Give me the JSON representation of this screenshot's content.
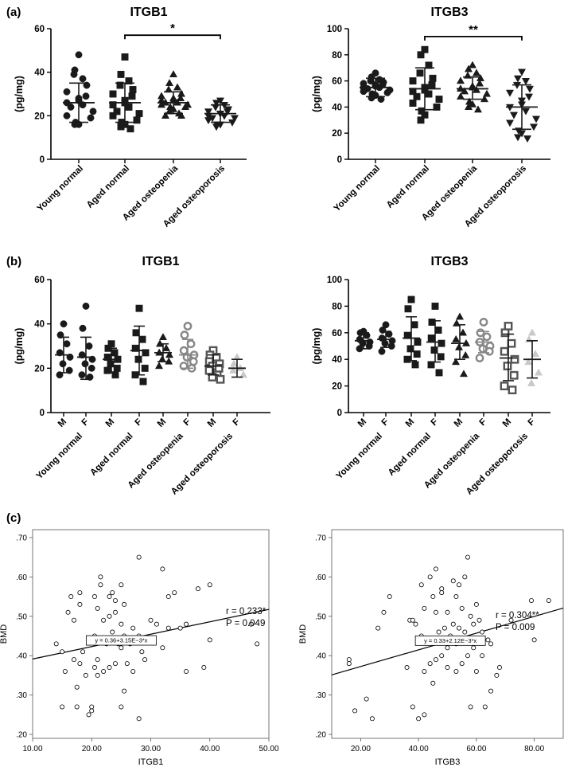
{
  "figure": {
    "panel_labels": [
      "(a)",
      "(b)",
      "(c)"
    ],
    "cat_labels": [
      "Young normal",
      "Aged normal",
      "Aged osteopenia",
      "Aged osteoporosis"
    ],
    "sex_labels": [
      "M",
      "F"
    ],
    "colors": {
      "black": "#1a1a1a",
      "group3_gray": "#888888",
      "group4_gray": "#c9c9c9"
    },
    "group_styles": [
      {
        "marker": "circle",
        "fill": "filled",
        "shade": "black"
      },
      {
        "marker": "square",
        "fill": "filled",
        "shade": "black"
      },
      {
        "marker": "triangle-up",
        "fill": "filled",
        "shade": "black"
      },
      {
        "marker": "triangle-down",
        "fill": "filled",
        "shade": "black"
      }
    ]
  },
  "chart_data": [
    {
      "id": "a1",
      "panel": "(a)",
      "type": "scatter",
      "title": "ITGB1",
      "ylabel": "(pg/mg)",
      "ylim": [
        0,
        60
      ],
      "yticks": [
        "0",
        "20",
        "40",
        "60"
      ],
      "categories": [
        "Young normal",
        "Aged normal",
        "Aged osteopenia",
        "Aged osteoporosis"
      ],
      "groups": [
        {
          "mean": 26,
          "sd_low": 17,
          "sd_high": 35,
          "points": [
            48,
            41,
            37,
            39,
            34,
            31,
            29,
            28,
            27,
            26,
            25,
            24,
            22,
            20,
            19,
            17,
            16,
            16
          ]
        },
        {
          "mean": 26,
          "sd_low": 17,
          "sd_high": 35,
          "points": [
            47,
            39,
            36,
            34,
            32,
            30,
            29,
            27,
            26,
            25,
            24,
            22,
            21,
            20,
            18,
            17,
            16,
            15,
            14
          ]
        },
        {
          "mean": 26,
          "sd_low": 21,
          "sd_high": 31,
          "points": [
            39,
            35,
            33,
            32,
            30,
            29,
            28,
            28,
            27,
            27,
            26,
            26,
            25,
            25,
            24,
            24,
            23,
            22,
            21,
            20,
            20
          ]
        },
        {
          "mean": 21,
          "sd_low": 17,
          "sd_high": 25,
          "points": [
            27,
            26,
            25,
            24,
            23,
            22,
            22,
            21,
            21,
            20,
            20,
            19,
            19,
            18,
            17,
            16,
            16,
            15
          ]
        }
      ],
      "annotations": [
        {
          "from": "Aged normal",
          "to": "Aged osteoporosis",
          "label": "*",
          "y": 57
        }
      ]
    },
    {
      "id": "a2",
      "panel": "(a)",
      "type": "scatter",
      "title": "ITGB3",
      "ylabel": "(pg/mg)",
      "ylim": [
        0,
        100
      ],
      "yticks": [
        "0",
        "20",
        "40",
        "60",
        "80",
        "100"
      ],
      "categories": [
        "Young normal",
        "Aged normal",
        "Aged osteopenia",
        "Aged osteoporosis"
      ],
      "groups": [
        {
          "mean": 55,
          "sd_low": 48,
          "sd_high": 62,
          "points": [
            66,
            63,
            61,
            60,
            59,
            58,
            57,
            57,
            56,
            55,
            55,
            54,
            53,
            52,
            51,
            50,
            49,
            47,
            46
          ]
        },
        {
          "mean": 54,
          "sd_low": 38,
          "sd_high": 70,
          "points": [
            84,
            80,
            72,
            66,
            62,
            60,
            57,
            55,
            53,
            52,
            50,
            48,
            46,
            43,
            40,
            37,
            34,
            30
          ]
        },
        {
          "mean": 54,
          "sd_low": 46,
          "sd_high": 63,
          "points": [
            72,
            69,
            66,
            64,
            62,
            60,
            58,
            56,
            55,
            54,
            53,
            52,
            50,
            48,
            46,
            44,
            42,
            40,
            38
          ]
        },
        {
          "mean": 40,
          "sd_low": 23,
          "sd_high": 57,
          "points": [
            67,
            62,
            60,
            57,
            54,
            51,
            48,
            45,
            42,
            40,
            37,
            34,
            31,
            28,
            25,
            22,
            20,
            17,
            16
          ]
        }
      ],
      "annotations": [
        {
          "from": "Aged normal",
          "to": "Aged osteoporosis",
          "label": "**",
          "y": 94
        }
      ]
    },
    {
      "id": "b1",
      "panel": "(b)",
      "type": "scatter",
      "title": "ITGB1",
      "ylabel": "(pg/mg)",
      "ylim": [
        0,
        60
      ],
      "yticks": [
        "0",
        "20",
        "40",
        "60"
      ],
      "categories": [
        "Young normal",
        "Aged normal",
        "Aged osteopenia",
        "Aged osteoporosis"
      ],
      "groups": [
        {
          "sex": "M",
          "mean": 26,
          "sd_low": 18,
          "sd_high": 34,
          "points": [
            40,
            35,
            31,
            27,
            25,
            22,
            19,
            17
          ]
        },
        {
          "sex": "F",
          "mean": 25,
          "sd_low": 15,
          "sd_high": 34,
          "points": [
            48,
            38,
            30,
            26,
            24,
            22,
            20,
            17,
            16
          ]
        },
        {
          "sex": "M",
          "mean": 24,
          "sd_low": 18,
          "sd_high": 29,
          "points": [
            31,
            29,
            27,
            25,
            24,
            22,
            20,
            19,
            17
          ]
        },
        {
          "sex": "F",
          "mean": 28,
          "sd_low": 17,
          "sd_high": 39,
          "points": [
            47,
            36,
            33,
            29,
            27,
            24,
            20,
            17,
            14
          ]
        },
        {
          "sex": "M",
          "mean": 27,
          "sd_low": 23,
          "sd_high": 31,
          "points": [
            34,
            31,
            29,
            27,
            26,
            24,
            23,
            21
          ]
        },
        {
          "sex": "F",
          "mean": 26,
          "sd_low": 20,
          "sd_high": 33,
          "points": [
            39,
            35,
            31,
            28,
            26,
            25,
            23,
            21,
            20
          ]
        },
        {
          "sex": "M",
          "mean": 21,
          "sd_low": 17,
          "sd_high": 26,
          "points": [
            28,
            26,
            25,
            23,
            22,
            21,
            20,
            19,
            17,
            16,
            15
          ]
        },
        {
          "sex": "F",
          "mean": 20,
          "sd_low": 16,
          "sd_high": 24,
          "points": [
            25,
            22,
            20,
            19,
            17
          ]
        }
      ]
    },
    {
      "id": "b2",
      "panel": "(b)",
      "type": "scatter",
      "title": "ITGB3",
      "ylabel": "(pg/mg)",
      "ylim": [
        0,
        100
      ],
      "yticks": [
        "0",
        "20",
        "40",
        "60",
        "80",
        "100"
      ],
      "categories": [
        "Young normal",
        "Aged normal",
        "Aged osteopenia",
        "Aged osteoporosis"
      ],
      "groups": [
        {
          "sex": "M",
          "mean": 54,
          "sd_low": 48,
          "sd_high": 60,
          "points": [
            61,
            60,
            58,
            55,
            53,
            52,
            50,
            48
          ]
        },
        {
          "sex": "F",
          "mean": 55,
          "sd_low": 49,
          "sd_high": 61,
          "points": [
            66,
            62,
            59,
            56,
            54,
            52,
            50,
            46
          ]
        },
        {
          "sex": "M",
          "mean": 56,
          "sd_low": 39,
          "sd_high": 72,
          "points": [
            85,
            78,
            66,
            58,
            53,
            48,
            44,
            40,
            36
          ]
        },
        {
          "sex": "F",
          "mean": 53,
          "sd_low": 38,
          "sd_high": 69,
          "points": [
            80,
            68,
            62,
            56,
            52,
            47,
            42,
            36,
            30
          ]
        },
        {
          "sex": "M",
          "mean": 52,
          "sd_low": 40,
          "sd_high": 66,
          "points": [
            72,
            67,
            60,
            55,
            52,
            49,
            43,
            38,
            29
          ]
        },
        {
          "sex": "F",
          "mean": 53,
          "sd_low": 45,
          "sd_high": 61,
          "points": [
            68,
            60,
            57,
            53,
            50,
            48,
            46,
            41
          ]
        },
        {
          "sex": "M",
          "mean": 41,
          "sd_low": 24,
          "sd_high": 59,
          "points": [
            65,
            60,
            52,
            46,
            40,
            35,
            28,
            20,
            17
          ]
        },
        {
          "sex": "F",
          "mean": 40,
          "sd_low": 26,
          "sd_high": 54,
          "points": [
            60,
            55,
            44,
            38,
            30,
            22
          ]
        }
      ]
    },
    {
      "id": "c1",
      "panel": "(c)",
      "type": "scatter",
      "xlabel": "ITGB1",
      "ylabel": "BMD",
      "xlim": [
        10,
        50
      ],
      "ylim": [
        0.19,
        0.72
      ],
      "xticks": [
        "10.00",
        "20.00",
        "30.00",
        "40.00",
        "50.00"
      ],
      "yticks": [
        ".20",
        ".30",
        ".40",
        ".50",
        ".60",
        ".70"
      ],
      "fit": {
        "intercept": 0.36,
        "slope": 0.00315,
        "label": "y = 0.36+3.15E−3*x"
      },
      "r_label": "r = 0.233*",
      "p_label": "P = 0.049",
      "points": [
        [
          14,
          0.43
        ],
        [
          15,
          0.41
        ],
        [
          15,
          0.27
        ],
        [
          15.5,
          0.36
        ],
        [
          16,
          0.51
        ],
        [
          16.5,
          0.55
        ],
        [
          17,
          0.49
        ],
        [
          17,
          0.39
        ],
        [
          17.5,
          0.27
        ],
        [
          17.5,
          0.32
        ],
        [
          18,
          0.56
        ],
        [
          18,
          0.53
        ],
        [
          18,
          0.38
        ],
        [
          18.5,
          0.41
        ],
        [
          19,
          0.35
        ],
        [
          19.5,
          0.25
        ],
        [
          20,
          0.27
        ],
        [
          20,
          0.26
        ],
        [
          20.5,
          0.55
        ],
        [
          20.5,
          0.45
        ],
        [
          20.5,
          0.37
        ],
        [
          21,
          0.52
        ],
        [
          21,
          0.39
        ],
        [
          21,
          0.35
        ],
        [
          21.5,
          0.6
        ],
        [
          21.5,
          0.58
        ],
        [
          22,
          0.49
        ],
        [
          22,
          0.36
        ],
        [
          22.5,
          0.43
        ],
        [
          23,
          0.55
        ],
        [
          23,
          0.5
        ],
        [
          23,
          0.37
        ],
        [
          23.5,
          0.56
        ],
        [
          23.5,
          0.46
        ],
        [
          24,
          0.54
        ],
        [
          24,
          0.51
        ],
        [
          24,
          0.38
        ],
        [
          24.5,
          0.43
        ],
        [
          25,
          0.58
        ],
        [
          25,
          0.48
        ],
        [
          25,
          0.42
        ],
        [
          25,
          0.27
        ],
        [
          25.5,
          0.53
        ],
        [
          25.5,
          0.45
        ],
        [
          25.5,
          0.31
        ],
        [
          26,
          0.44
        ],
        [
          26,
          0.38
        ],
        [
          26.5,
          0.43
        ],
        [
          27,
          0.47
        ],
        [
          27,
          0.36
        ],
        [
          28,
          0.65
        ],
        [
          28,
          0.45
        ],
        [
          28,
          0.24
        ],
        [
          28.5,
          0.41
        ],
        [
          29,
          0.39
        ],
        [
          30,
          0.49
        ],
        [
          31,
          0.48
        ],
        [
          32,
          0.62
        ],
        [
          32,
          0.42
        ],
        [
          33,
          0.55
        ],
        [
          33,
          0.47
        ],
        [
          34,
          0.56
        ],
        [
          35,
          0.47
        ],
        [
          36,
          0.48
        ],
        [
          36,
          0.36
        ],
        [
          38,
          0.57
        ],
        [
          39,
          0.37
        ],
        [
          40,
          0.58
        ],
        [
          40,
          0.44
        ],
        [
          47,
          0.48
        ],
        [
          48,
          0.43
        ]
      ]
    },
    {
      "id": "c2",
      "panel": "(c)",
      "type": "scatter",
      "xlabel": "ITGB3",
      "ylabel": "BMD",
      "xlim": [
        10,
        90
      ],
      "ylim": [
        0.19,
        0.72
      ],
      "xticks": [
        "20.00",
        "40.00",
        "60.00",
        "80.00"
      ],
      "yticks": [
        ".20",
        ".30",
        ".40",
        ".50",
        ".60",
        ".70"
      ],
      "fit": {
        "intercept": 0.33,
        "slope": 0.00212,
        "label": "y = 0.33+2.12E−3*x"
      },
      "r_label": "r = 0.304**",
      "p_label": "P = 0.009",
      "points": [
        [
          16,
          0.39
        ],
        [
          16,
          0.38
        ],
        [
          18,
          0.26
        ],
        [
          22,
          0.29
        ],
        [
          24,
          0.24
        ],
        [
          26,
          0.47
        ],
        [
          28,
          0.51
        ],
        [
          30,
          0.55
        ],
        [
          36,
          0.37
        ],
        [
          37,
          0.49
        ],
        [
          38,
          0.49
        ],
        [
          38,
          0.27
        ],
        [
          39,
          0.48
        ],
        [
          40,
          0.24
        ],
        [
          41,
          0.58
        ],
        [
          41,
          0.45
        ],
        [
          42,
          0.52
        ],
        [
          42,
          0.36
        ],
        [
          42,
          0.25
        ],
        [
          44,
          0.6
        ],
        [
          44,
          0.44
        ],
        [
          44,
          0.38
        ],
        [
          45,
          0.55
        ],
        [
          45,
          0.33
        ],
        [
          46,
          0.62
        ],
        [
          46,
          0.51
        ],
        [
          46,
          0.39
        ],
        [
          47,
          0.46
        ],
        [
          48,
          0.57
        ],
        [
          48,
          0.56
        ],
        [
          48,
          0.4
        ],
        [
          49,
          0.47
        ],
        [
          50,
          0.51
        ],
        [
          50,
          0.42
        ],
        [
          50,
          0.37
        ],
        [
          51,
          0.45
        ],
        [
          52,
          0.59
        ],
        [
          52,
          0.48
        ],
        [
          53,
          0.55
        ],
        [
          53,
          0.43
        ],
        [
          53,
          0.36
        ],
        [
          54,
          0.58
        ],
        [
          54,
          0.47
        ],
        [
          55,
          0.52
        ],
        [
          55,
          0.38
        ],
        [
          56,
          0.6
        ],
        [
          56,
          0.46
        ],
        [
          57,
          0.65
        ],
        [
          57,
          0.44
        ],
        [
          57,
          0.4
        ],
        [
          58,
          0.5
        ],
        [
          58,
          0.27
        ],
        [
          59,
          0.48
        ],
        [
          59,
          0.42
        ],
        [
          60,
          0.53
        ],
        [
          60,
          0.36
        ],
        [
          61,
          0.49
        ],
        [
          62,
          0.46
        ],
        [
          62,
          0.4
        ],
        [
          63,
          0.27
        ],
        [
          64,
          0.44
        ],
        [
          65,
          0.43
        ],
        [
          65,
          0.31
        ],
        [
          67,
          0.35
        ],
        [
          68,
          0.37
        ],
        [
          72,
          0.49
        ],
        [
          79,
          0.54
        ],
        [
          80,
          0.44
        ],
        [
          85,
          0.54
        ]
      ]
    }
  ]
}
